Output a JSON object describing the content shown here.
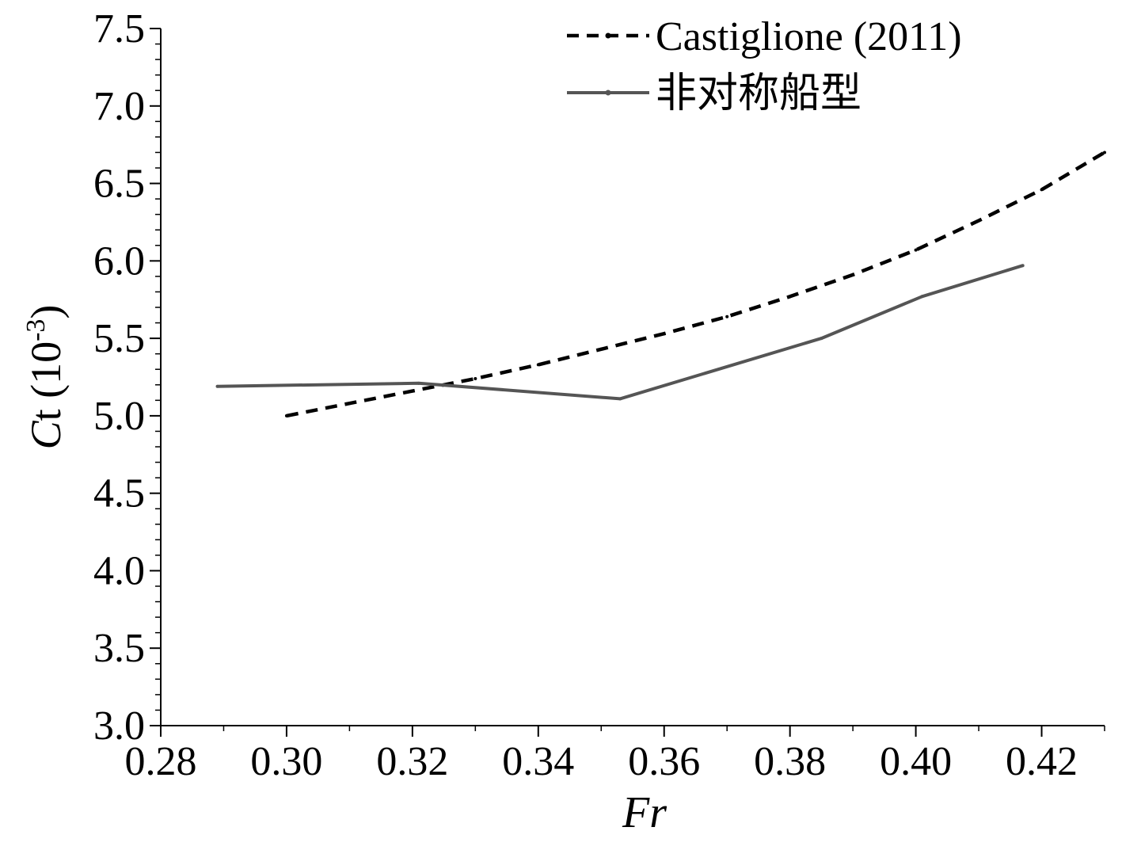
{
  "chart_data": {
    "type": "line",
    "xlabel": "Fr",
    "ylabel": {
      "main": "Ct (10",
      "sup": "-3",
      "close": ")"
    },
    "xlim": [
      0.28,
      0.43
    ],
    "ylim": [
      3.0,
      7.5
    ],
    "x_ticks": [
      0.28,
      0.3,
      0.32,
      0.34,
      0.36,
      0.38,
      0.4,
      0.42
    ],
    "x_tick_labels": [
      "0.28",
      "0.30",
      "0.32",
      "0.34",
      "0.36",
      "0.38",
      "0.40",
      "0.42"
    ],
    "y_ticks": [
      3.0,
      3.5,
      4.0,
      4.5,
      5.0,
      5.5,
      6.0,
      6.5,
      7.0,
      7.5
    ],
    "y_tick_labels": [
      "3.0",
      "3.5",
      "4.0",
      "4.5",
      "5.0",
      "5.5",
      "6.0",
      "6.5",
      "7.0",
      "7.5"
    ],
    "grid": false,
    "legend_position": "top-right",
    "series": [
      {
        "name": "Castiglione (2011)",
        "style": "dashed",
        "color": "#000000",
        "x": [
          0.3,
          0.31,
          0.32,
          0.33,
          0.34,
          0.35,
          0.36,
          0.37,
          0.38,
          0.39,
          0.4,
          0.41,
          0.42,
          0.43
        ],
        "y": [
          5.0,
          5.08,
          5.16,
          5.24,
          5.33,
          5.43,
          5.53,
          5.64,
          5.77,
          5.91,
          6.07,
          6.26,
          6.46,
          6.7
        ]
      },
      {
        "name": "非对称船型",
        "style": "solid",
        "color": "#555555",
        "x": [
          0.289,
          0.321,
          0.353,
          0.385,
          0.401,
          0.417
        ],
        "y": [
          5.19,
          5.21,
          5.11,
          5.5,
          5.77,
          5.97
        ]
      }
    ]
  }
}
